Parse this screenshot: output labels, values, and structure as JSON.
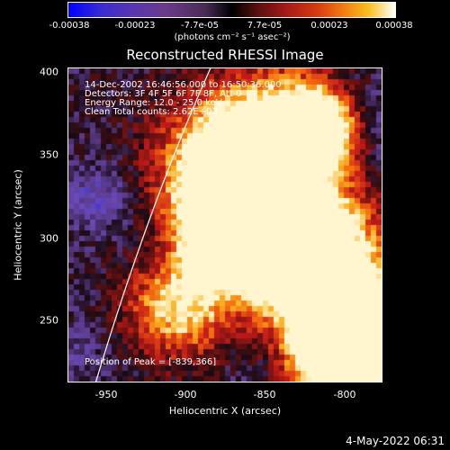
{
  "colorbar": {
    "ticks": [
      "-0.00038",
      "-0.00023",
      "-7.7e-05",
      "7.7e-05",
      "0.00023",
      "0.00038"
    ],
    "units": "(photons cm⁻² s⁻¹ asec⁻²)"
  },
  "title": "Reconstructed RHESSI Image",
  "info": {
    "time": "14-Dec-2002 16:46:56.000 to 16:50:36.000",
    "detectors": "Detectors: 3F 4F 5F 6F 7F 8F, Att 0",
    "energy": "Energy Range: 12.0 - 25.0 keV",
    "clean": "Clean     Total counts: 2.62E+03",
    "peak": "Position of Peak = [-839,366]"
  },
  "axes": {
    "xlabel": "Heliocentric X (arcsec)",
    "ylabel": "Heliocentric Y (arcsec)",
    "xticks": [
      "-950",
      "-900",
      "-850",
      "-800"
    ],
    "yticks": [
      "400",
      "350",
      "300",
      "250"
    ]
  },
  "timestamp": "4-May-2022 06:31",
  "chart_data": {
    "type": "heatmap",
    "title": "Reconstructed RHESSI Image",
    "xlabel": "Heliocentric X (arcsec)",
    "ylabel": "Heliocentric Y (arcsec)",
    "xlim": [
      -970,
      -780
    ],
    "ylim": [
      210,
      405
    ],
    "zlim": [
      -0.00038,
      0.00038
    ],
    "colormap_stops": [
      "#0000ff",
      "#5b36b0",
      "#4a2a55",
      "#000000",
      "#a01818",
      "#f07a10",
      "#ffffff"
    ],
    "limb_color": "#ffffff",
    "peak_position": [
      -839,
      366
    ]
  }
}
